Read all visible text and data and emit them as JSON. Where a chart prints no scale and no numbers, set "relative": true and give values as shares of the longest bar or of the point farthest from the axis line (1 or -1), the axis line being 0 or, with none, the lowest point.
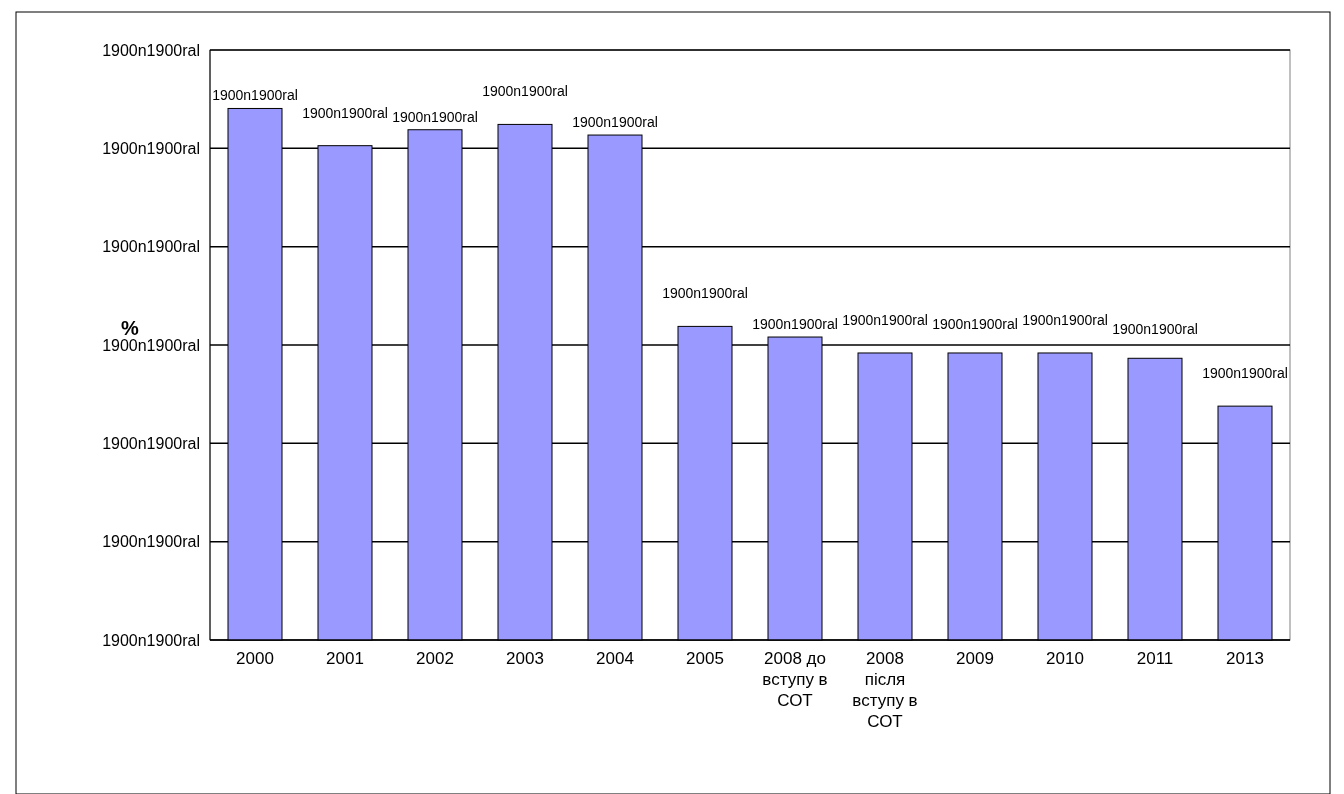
{
  "chart_data": {
    "type": "bar",
    "ylabel": "%",
    "relative": true,
    "categories": [
      "2000",
      "2001",
      "2002",
      "2003",
      "2004",
      "2005",
      "2008 до вступу в СОТ",
      "2008 після вступу в СОТ",
      "2009",
      "2010",
      "2011",
      "2013"
    ],
    "values": [
      1,
      0.93,
      0.96,
      0.97,
      0.95,
      0.59,
      0.57,
      0.54,
      0.54,
      0.54,
      0.53,
      0.44
    ],
    "color": "#9999ff",
    "annotations": [
      "1900n1900ral",
      "1900n1900ral",
      "1900n1900ral",
      "1900n1900ral",
      "1900n1900ral",
      "1900n1900ral",
      "1900n1900ral",
      {
        "text": "1900n1900ral",
        "x": "2000",
        "y": 1
      },
      {
        "text": "1900n1900ral",
        "x": "2001",
        "y": 0.93
      },
      {
        "text": "1900n1900ral",
        "x": "2002",
        "y": 0.96
      },
      {
        "text": "1900n1900ral",
        "x": "2003",
        "y": 0.97
      },
      {
        "text": "1900n1900ral",
        "x": "2004",
        "y": 0.95
      },
      {
        "text": "1900n1900ral",
        "x": "2005",
        "y": 0.59
      },
      {
        "text": "1900n1900ral",
        "x": "2008 до вступу в СОТ",
        "y": 0.57
      },
      {
        "text": "1900n1900ral",
        "x": "2008 після вступу в СОТ",
        "y": 0.54
      },
      {
        "text": "1900n1900ral",
        "x": "2009",
        "y": 0.54
      },
      {
        "text": "1900n1900ral",
        "x": "2010",
        "y": 0.54
      },
      {
        "text": "1900n1900ral",
        "x": "2011",
        "y": 0.53
      },
      {
        "text": "1900n1900ral",
        "x": "2013",
        "y": 0.44
      }
    ],
    "grid": "y"
  }
}
